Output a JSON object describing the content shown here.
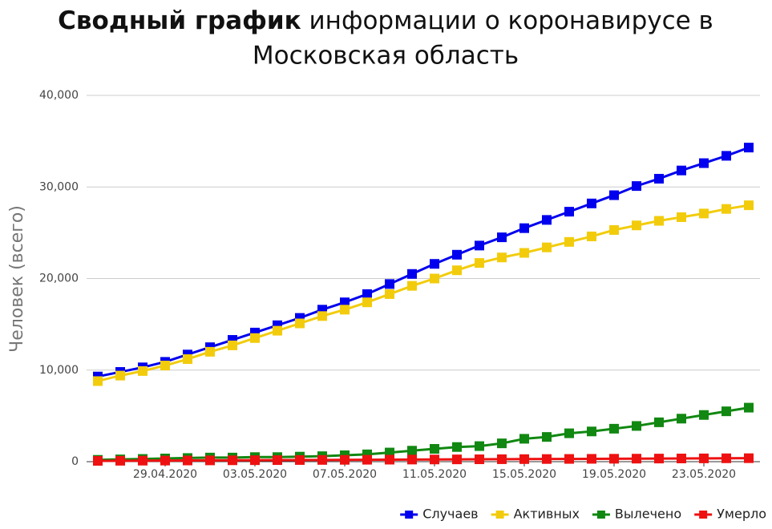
{
  "chart_data": {
    "type": "line",
    "title_bold": "Сводный график",
    "title_rest": "информации о коронавирусе в",
    "title_line2": "Московская область",
    "y_label": "Человек (всего)",
    "categories": [
      null,
      null,
      null,
      "29.04.2020",
      null,
      null,
      null,
      "03.05.2020",
      null,
      null,
      null,
      "07.05.2020",
      null,
      null,
      null,
      "11.05.2020",
      null,
      null,
      null,
      "15.05.2020",
      null,
      null,
      null,
      "19.05.2020",
      null,
      null,
      null,
      "23.05.2020",
      null,
      null
    ],
    "series": [
      {
        "name": "Случаев",
        "color": "#0000ee",
        "values": [
          9300,
          9800,
          10300,
          10900,
          11700,
          12500,
          13300,
          14100,
          14900,
          15700,
          16600,
          17400,
          18300,
          19400,
          20500,
          21600,
          22600,
          23600,
          24500,
          25500,
          26400,
          27300,
          28200,
          29100,
          30100,
          30900,
          31800,
          32600,
          33400,
          34300
        ]
      },
      {
        "name": "Активных",
        "color": "#f2cc0c",
        "values": [
          8800,
          9400,
          9900,
          10500,
          11200,
          12000,
          12700,
          13500,
          14300,
          15100,
          15900,
          16600,
          17400,
          18300,
          19200,
          20000,
          20900,
          21700,
          22300,
          22800,
          23400,
          24000,
          24600,
          25300,
          25800,
          26300,
          26700,
          27100,
          27600,
          28000
        ]
      },
      {
        "name": "Вылечено",
        "color": "#118811",
        "values": [
          200,
          250,
          300,
          350,
          400,
          450,
          450,
          500,
          500,
          550,
          600,
          700,
          800,
          1000,
          1200,
          1400,
          1600,
          1700,
          2000,
          2500,
          2700,
          3100,
          3300,
          3600,
          3900,
          4300,
          4700,
          5100,
          5500,
          5900
        ]
      },
      {
        "name": "Умерло",
        "color": "#ee1111",
        "values": [
          90,
          100,
          110,
          120,
          130,
          140,
          150,
          160,
          170,
          180,
          190,
          200,
          210,
          220,
          230,
          240,
          250,
          260,
          270,
          280,
          290,
          300,
          310,
          320,
          330,
          340,
          350,
          360,
          370,
          380
        ]
      }
    ],
    "ylim": [
      0,
      40000
    ],
    "yticks": [
      0,
      {
        "value": 10000,
        "label": "10,000"
      },
      {
        "value": 20000,
        "label": "20,000"
      },
      {
        "value": 30000,
        "label": "30,000"
      },
      {
        "value": 40000,
        "label": "40,000"
      }
    ],
    "grid": true,
    "legend": "bottom-right"
  }
}
